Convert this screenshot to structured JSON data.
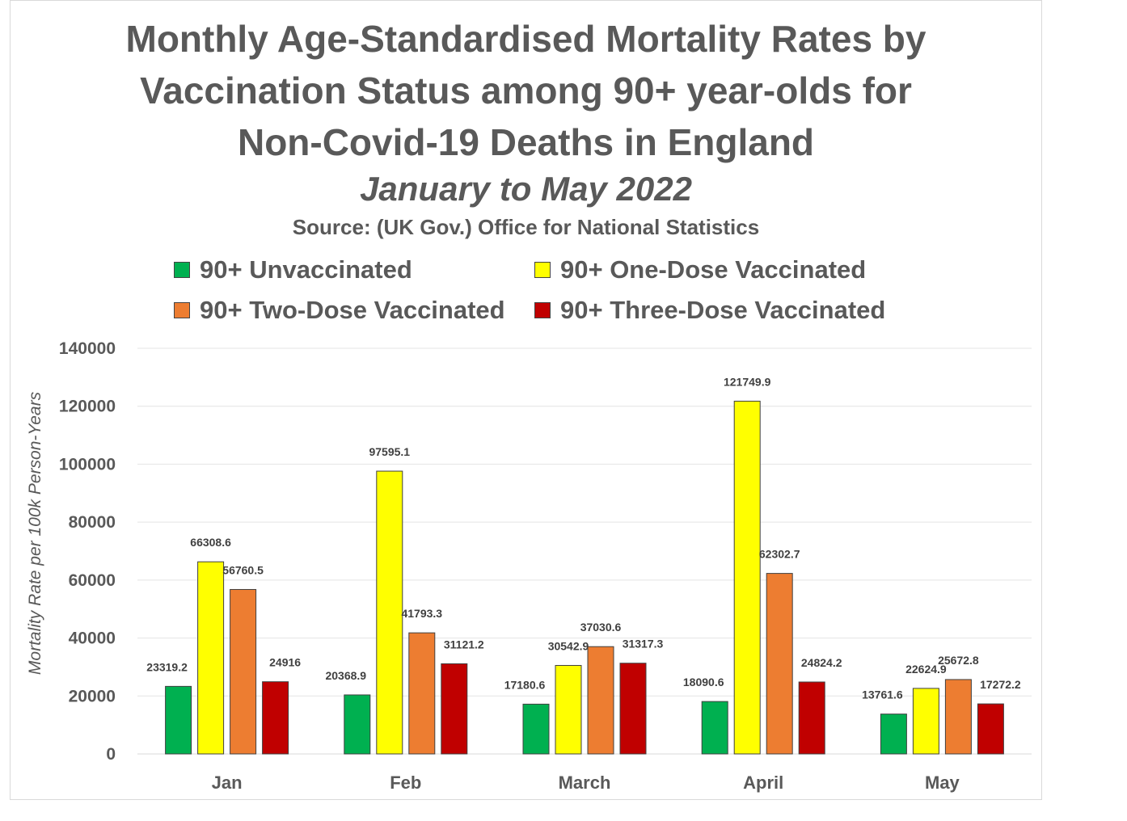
{
  "title_lines": [
    "Monthly Age-Standardised Mortality Rates by",
    "Vaccination Status among 90+ year-olds for",
    "Non-Covid-19 Deaths in England"
  ],
  "subtitle": "January to May 2022",
  "source": "Source: (UK Gov.) Office for National Statistics",
  "chart_data": {
    "type": "bar",
    "title": "Monthly Age-Standardised Mortality Rates by Vaccination Status among 90+ year-olds for Non-Covid-19 Deaths in England",
    "subtitle": "January to May 2022",
    "xlabel": "",
    "ylabel": "Mortality Rate per 100k Person-Years",
    "ylim": [
      0,
      140000
    ],
    "yticks": [
      "0",
      "20000",
      "40000",
      "60000",
      "80000",
      "100000",
      "120000",
      "140000"
    ],
    "grid": true,
    "legend_position": "top",
    "categories": [
      "Jan",
      "Feb",
      "March",
      "April",
      "May"
    ],
    "series": [
      {
        "name": "90+ Unvaccinated",
        "color": "#00B050",
        "values": [
          23319.2,
          20368.9,
          17180.6,
          18090.6,
          13761.6
        ]
      },
      {
        "name": "90+ One-Dose Vaccinated",
        "color": "#FFFF00",
        "values": [
          66308.6,
          97595.1,
          30542.9,
          121749.9,
          22624.9
        ]
      },
      {
        "name": "90+ Two-Dose Vaccinated",
        "color": "#ED7D31",
        "values": [
          56760.5,
          41793.3,
          37030.6,
          62302.7,
          25672.8
        ]
      },
      {
        "name": "90+ Three-Dose Vaccinated",
        "color": "#C00000",
        "values": [
          24916,
          31121.2,
          31317.3,
          24824.2,
          17272.2
        ]
      }
    ]
  }
}
